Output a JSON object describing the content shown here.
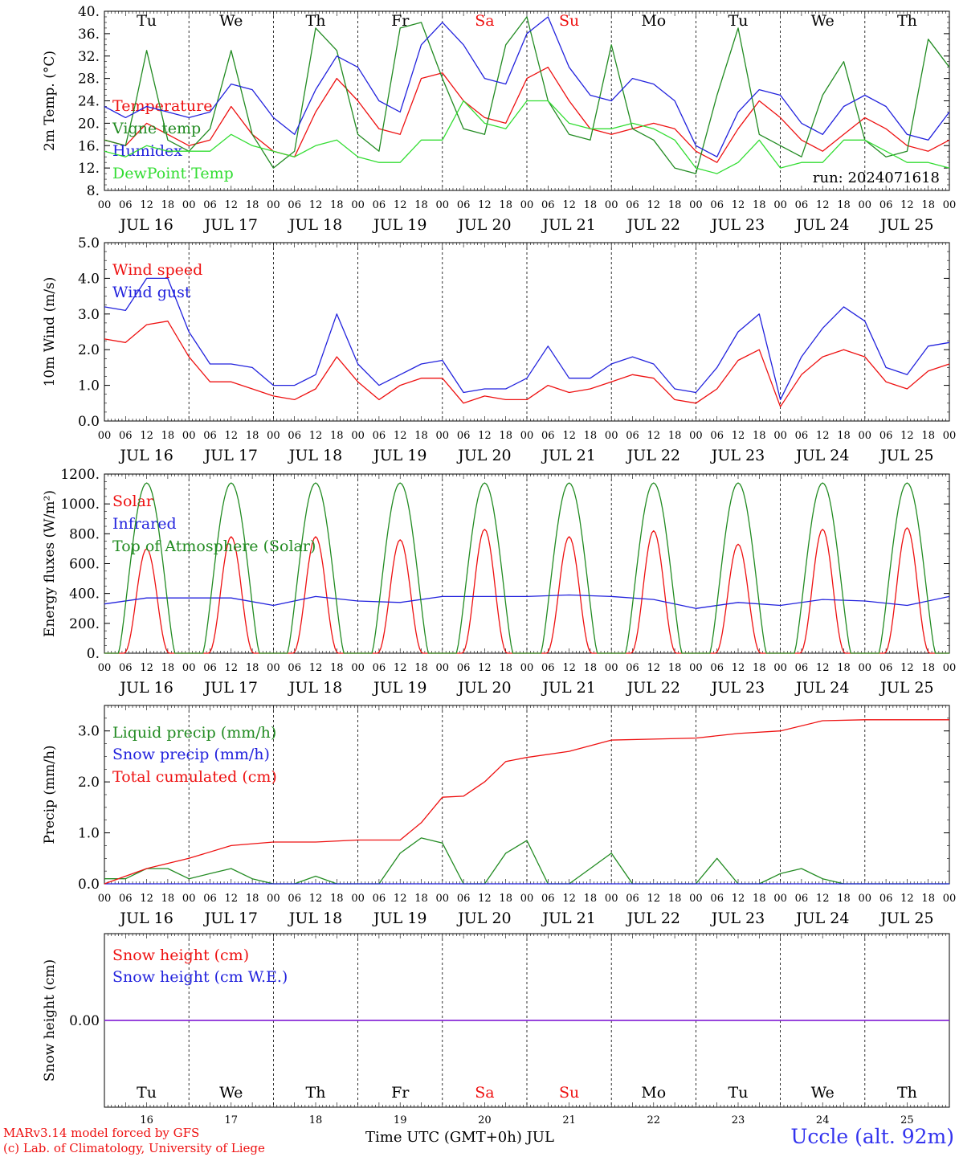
{
  "chart_data": [
    {
      "type": "line",
      "id": "temperature",
      "ylabel": "2m Temp. (°C)",
      "ylim": [
        8,
        40
      ],
      "yticks": [
        "8.",
        "12.",
        "16.",
        "20.",
        "24.",
        "28.",
        "32.",
        "36.",
        "40."
      ],
      "annotation": "run: 2024071618",
      "day_labels": [
        "JUL 16",
        "JUL 17",
        "JUL 18",
        "JUL 19",
        "JUL 20",
        "JUL 21",
        "JUL 22",
        "JUL 23",
        "JUL 24",
        "JUL 25"
      ],
      "weekdays": [
        {
          "label": "Tu",
          "color": "#000000"
        },
        {
          "label": "We",
          "color": "#000000"
        },
        {
          "label": "Th",
          "color": "#000000"
        },
        {
          "label": "Fr",
          "color": "#000000"
        },
        {
          "label": "Sa",
          "color": "#ee1111"
        },
        {
          "label": "Su",
          "color": "#ee1111"
        },
        {
          "label": "Mo",
          "color": "#000000"
        },
        {
          "label": "Tu",
          "color": "#000000"
        },
        {
          "label": "We",
          "color": "#000000"
        },
        {
          "label": "Th",
          "color": "#000000"
        }
      ],
      "hour_ticks": [
        "00",
        "06",
        "12",
        "18"
      ],
      "series": [
        {
          "name": "Temperature",
          "color": "#ee1111",
          "x_hours": [
            0,
            6,
            12,
            18,
            24,
            30,
            36,
            42,
            48,
            54,
            60,
            66,
            72,
            78,
            84,
            90,
            96,
            102,
            108,
            114,
            120,
            126,
            132,
            138,
            144,
            150,
            156,
            162,
            168,
            174,
            180,
            186,
            192,
            198,
            204,
            210,
            216,
            222,
            228,
            234,
            240
          ],
          "values": [
            17,
            16,
            20,
            18,
            16,
            17,
            23,
            18,
            15,
            14,
            22,
            28,
            24,
            19,
            18,
            28,
            29,
            24,
            21,
            20,
            28,
            30,
            24,
            19,
            18,
            19,
            20,
            19,
            15,
            13,
            19,
            24,
            21,
            17,
            15,
            18,
            21,
            19,
            16,
            15,
            17
          ]
        },
        {
          "name": "Vigne temp",
          "color": "#228b22",
          "x_hours": [
            0,
            6,
            9,
            12,
            18,
            24,
            30,
            36,
            42,
            48,
            54,
            60,
            66,
            72,
            78,
            84,
            90,
            96,
            102,
            108,
            114,
            120,
            126,
            132,
            138,
            144,
            150,
            156,
            162,
            168,
            174,
            180,
            186,
            192,
            198,
            204,
            210,
            216,
            222,
            228,
            234,
            240
          ],
          "values": [
            17,
            16,
            24,
            33,
            17,
            15,
            19,
            33,
            18,
            12,
            15,
            37,
            33,
            18,
            15,
            37,
            38,
            28,
            19,
            18,
            34,
            39,
            24,
            18,
            17,
            34,
            19,
            17,
            12,
            11,
            25,
            37,
            18,
            16,
            14,
            25,
            31,
            17,
            14,
            15,
            35,
            30
          ]
        },
        {
          "name": "Humidex",
          "color": "#2222dd",
          "x_hours": [
            0,
            6,
            12,
            18,
            24,
            30,
            36,
            42,
            48,
            54,
            60,
            66,
            72,
            78,
            84,
            90,
            96,
            102,
            108,
            114,
            120,
            126,
            132,
            138,
            144,
            150,
            156,
            162,
            168,
            174,
            180,
            186,
            192,
            198,
            204,
            210,
            216,
            222,
            228,
            234,
            240
          ],
          "values": [
            23,
            21,
            23,
            22,
            21,
            22,
            27,
            26,
            21,
            18,
            26,
            32,
            30,
            24,
            22,
            34,
            38,
            34,
            28,
            27,
            36,
            39,
            30,
            25,
            24,
            28,
            27,
            24,
            16,
            14,
            22,
            26,
            25,
            20,
            18,
            23,
            25,
            23,
            18,
            17,
            22
          ]
        },
        {
          "name": "DewPoint Temp",
          "color": "#33dd33",
          "x_hours": [
            0,
            6,
            12,
            18,
            24,
            30,
            36,
            42,
            48,
            54,
            60,
            66,
            72,
            78,
            84,
            90,
            96,
            102,
            108,
            114,
            120,
            126,
            132,
            138,
            144,
            150,
            156,
            162,
            168,
            174,
            180,
            186,
            192,
            198,
            204,
            210,
            216,
            222,
            228,
            234,
            240
          ],
          "values": [
            15,
            14,
            16,
            15,
            15,
            15,
            18,
            16,
            15,
            14,
            16,
            17,
            14,
            13,
            13,
            17,
            17,
            24,
            20,
            19,
            24,
            24,
            20,
            19,
            19,
            20,
            19,
            17,
            12,
            11,
            13,
            17,
            12,
            13,
            13,
            17,
            17,
            15,
            13,
            13,
            12
          ]
        }
      ]
    },
    {
      "type": "line",
      "id": "wind",
      "ylabel": "10m Wind (m/s)",
      "ylim": [
        0,
        5
      ],
      "yticks": [
        "0.0",
        "1.0",
        "2.0",
        "3.0",
        "4.0",
        "5.0"
      ],
      "day_labels": [
        "JUL 16",
        "JUL 17",
        "JUL 18",
        "JUL 19",
        "JUL 20",
        "JUL 21",
        "JUL 22",
        "JUL 23",
        "JUL 24",
        "JUL 25"
      ],
      "hour_ticks": [
        "00",
        "06",
        "12",
        "18"
      ],
      "series": [
        {
          "name": "Wind speed",
          "color": "#ee1111",
          "x_hours": [
            0,
            6,
            12,
            18,
            24,
            30,
            36,
            42,
            48,
            54,
            60,
            66,
            72,
            78,
            84,
            90,
            96,
            102,
            108,
            114,
            120,
            126,
            132,
            138,
            144,
            150,
            156,
            162,
            168,
            174,
            180,
            186,
            192,
            198,
            204,
            210,
            216,
            222,
            228,
            234,
            240
          ],
          "values": [
            2.3,
            2.2,
            2.7,
            2.8,
            1.8,
            1.1,
            1.1,
            0.9,
            0.7,
            0.6,
            0.9,
            1.8,
            1.1,
            0.6,
            1.0,
            1.2,
            1.2,
            0.5,
            0.7,
            0.6,
            0.6,
            1.0,
            0.8,
            0.9,
            1.1,
            1.3,
            1.2,
            0.6,
            0.5,
            0.9,
            1.7,
            2.0,
            0.4,
            1.3,
            1.8,
            2.0,
            1.8,
            1.1,
            0.9,
            1.4,
            1.6
          ]
        },
        {
          "name": "Wind gust",
          "color": "#2222dd",
          "x_hours": [
            0,
            6,
            12,
            18,
            24,
            30,
            36,
            42,
            48,
            54,
            60,
            66,
            72,
            78,
            84,
            90,
            96,
            102,
            108,
            114,
            120,
            126,
            132,
            138,
            144,
            150,
            156,
            162,
            168,
            174,
            180,
            186,
            192,
            198,
            204,
            210,
            216,
            222,
            228,
            234,
            240
          ],
          "values": [
            3.2,
            3.1,
            4.0,
            4.0,
            2.5,
            1.6,
            1.6,
            1.5,
            1.0,
            1.0,
            1.3,
            3.0,
            1.6,
            1.0,
            1.3,
            1.6,
            1.7,
            0.8,
            0.9,
            0.9,
            1.2,
            2.1,
            1.2,
            1.2,
            1.6,
            1.8,
            1.6,
            0.9,
            0.8,
            1.5,
            2.5,
            3.0,
            0.6,
            1.8,
            2.6,
            3.2,
            2.8,
            1.5,
            1.3,
            2.1,
            2.2
          ]
        }
      ]
    },
    {
      "type": "line",
      "id": "energy",
      "ylabel": "Energy fluxes (W/m²)",
      "ylim": [
        0,
        1200
      ],
      "yticks": [
        "0.",
        "200.",
        "400.",
        "600.",
        "800.",
        "1000.",
        "1200."
      ],
      "day_labels": [
        "JUL 16",
        "JUL 17",
        "JUL 18",
        "JUL 19",
        "JUL 20",
        "JUL 21",
        "JUL 22",
        "JUL 23",
        "JUL 24",
        "JUL 25"
      ],
      "hour_ticks": [
        "00",
        "06",
        "12",
        "18"
      ],
      "series": [
        {
          "name": "Solar",
          "color": "#ee1111",
          "daily_peak": [
            700,
            780,
            780,
            760,
            830,
            780,
            820,
            730,
            830,
            840
          ]
        },
        {
          "name": "Infrared",
          "color": "#2222dd",
          "x_hours": [
            0,
            12,
            24,
            36,
            48,
            60,
            72,
            84,
            96,
            108,
            120,
            132,
            144,
            156,
            168,
            180,
            192,
            204,
            216,
            228,
            240
          ],
          "values": [
            330,
            370,
            370,
            370,
            320,
            380,
            350,
            340,
            380,
            380,
            380,
            390,
            380,
            360,
            300,
            340,
            320,
            360,
            350,
            320,
            380
          ]
        },
        {
          "name": "Top of Atmosphere (Solar)",
          "color": "#228b22",
          "daily_peak": [
            1140,
            1140,
            1140,
            1140,
            1140,
            1140,
            1140,
            1140,
            1140,
            1140
          ]
        }
      ]
    },
    {
      "type": "line",
      "id": "precip",
      "ylabel": "Precip (mm/h)",
      "ylim": [
        0,
        3.5
      ],
      "yticks": [
        "0.0",
        "1.0",
        "2.0",
        "3.0"
      ],
      "day_labels": [
        "JUL 16",
        "JUL 17",
        "JUL 18",
        "JUL 19",
        "JUL 20",
        "JUL 21",
        "JUL 22",
        "JUL 23",
        "JUL 24",
        "JUL 25"
      ],
      "hour_ticks": [
        "00",
        "06",
        "12",
        "18"
      ],
      "series": [
        {
          "name": "Liquid precip (mm/h)",
          "color": "#228b22",
          "x_hours": [
            0,
            6,
            12,
            18,
            24,
            30,
            36,
            42,
            48,
            54,
            60,
            66,
            72,
            78,
            84,
            90,
            96,
            102,
            108,
            114,
            120,
            126,
            132,
            138,
            144,
            150,
            156,
            162,
            168,
            174,
            180,
            186,
            192,
            198,
            204,
            210,
            216,
            222,
            228,
            234,
            240
          ],
          "values": [
            0.1,
            0.1,
            0.3,
            0.3,
            0.1,
            0.2,
            0.3,
            0.1,
            0,
            0,
            0.15,
            0,
            0,
            0,
            0.6,
            0.9,
            0.8,
            0,
            0,
            0.6,
            0.85,
            0,
            0,
            0.3,
            0.6,
            0,
            0,
            0,
            0,
            0.5,
            0,
            0,
            0.2,
            0.3,
            0.1,
            0,
            0,
            0,
            0,
            0,
            0
          ]
        },
        {
          "name": "Snow precip (mm/h)",
          "color": "#2222dd",
          "x_hours": [
            0,
            240
          ],
          "values": [
            0,
            0
          ]
        },
        {
          "name": "Total cumulated (cm)",
          "color": "#ee1111",
          "x_hours": [
            0,
            12,
            24,
            36,
            48,
            60,
            72,
            84,
            90,
            96,
            102,
            108,
            114,
            120,
            132,
            144,
            156,
            168,
            180,
            192,
            204,
            216,
            228,
            240
          ],
          "values": [
            0,
            0.3,
            0.5,
            0.75,
            0.82,
            0.82,
            0.86,
            0.86,
            1.2,
            1.7,
            1.72,
            2.0,
            2.4,
            2.48,
            2.6,
            2.82,
            2.84,
            2.86,
            2.95,
            3.0,
            3.2,
            3.22,
            3.22,
            3.22
          ]
        }
      ]
    },
    {
      "type": "line",
      "id": "snow",
      "ylabel": "Snow height (cm)",
      "ylim": [
        -1,
        1
      ],
      "yticks": [
        "0.00"
      ],
      "weekdays": [
        {
          "label": "Tu",
          "color": "#000000"
        },
        {
          "label": "We",
          "color": "#000000"
        },
        {
          "label": "Th",
          "color": "#000000"
        },
        {
          "label": "Fr",
          "color": "#000000"
        },
        {
          "label": "Sa",
          "color": "#ee1111"
        },
        {
          "label": "Su",
          "color": "#ee1111"
        },
        {
          "label": "Mo",
          "color": "#000000"
        },
        {
          "label": "Tu",
          "color": "#000000"
        },
        {
          "label": "We",
          "color": "#000000"
        },
        {
          "label": "Th",
          "color": "#000000"
        }
      ],
      "day_numbers": [
        "16",
        "17",
        "18",
        "19",
        "20",
        "21",
        "22",
        "23",
        "24",
        "25"
      ],
      "series": [
        {
          "name": "Snow height (cm)",
          "color": "#ee1111",
          "x_hours": [
            0,
            240
          ],
          "values": [
            0,
            0
          ]
        },
        {
          "name": "Snow height (cm W.E.)",
          "color": "#2222dd",
          "x_hours": [
            0,
            240
          ],
          "values": [
            0,
            0
          ]
        }
      ]
    }
  ],
  "footer": {
    "credit_line1": "MARv3.14 model forced by GFS",
    "credit_line2": "(c) Lab. of Climatology, University of Liege",
    "xaxis_title": "Time UTC (GMT+0h) JUL",
    "station": "Uccle (alt. 92m)"
  }
}
